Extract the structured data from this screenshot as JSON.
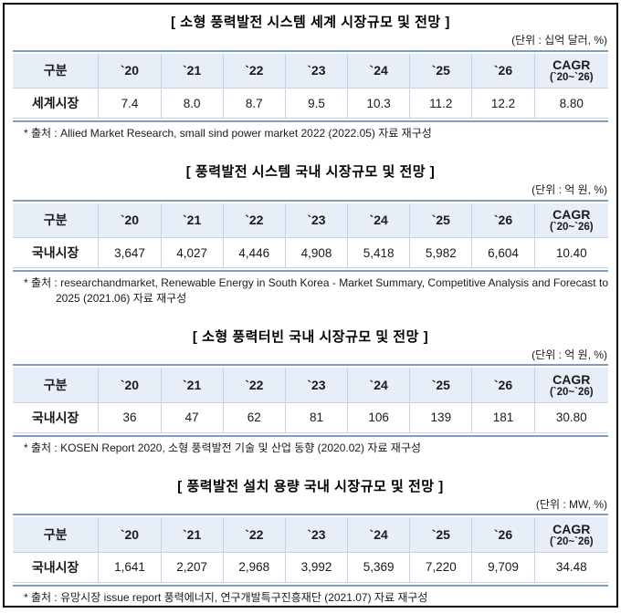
{
  "colors": {
    "header_bg": "#e8eef7",
    "heavy_border": "#7e9dc3",
    "light_border": "#c3d3e6",
    "text": "#1a1a1a",
    "page_border": "#000000"
  },
  "tables": [
    {
      "title": "[ 소형 풍력발전 시스템 세계 시장규모 및 전망 ]",
      "unit": "(단위 : 십억 달러, %)",
      "header": {
        "label": "구분",
        "years": [
          "`20",
          "`21",
          "`22",
          "`23",
          "`24",
          "`25",
          "`26"
        ],
        "cagr_line1": "CAGR",
        "cagr_line2": "(`20~`26)"
      },
      "row": {
        "label": "세계시장",
        "values": [
          "7.4",
          "8.0",
          "8.7",
          "9.5",
          "10.3",
          "11.2",
          "12.2"
        ],
        "cagr": "8.80"
      },
      "source": "* 출처 : Allied Market Research, small sind power market 2022 (2022.05) 자료 재구성"
    },
    {
      "title": "[ 풍력발전 시스템 국내 시장규모 및 전망 ]",
      "unit": "(단위 : 억 원, %)",
      "header": {
        "label": "구분",
        "years": [
          "`20",
          "`21",
          "`22",
          "`23",
          "`24",
          "`25",
          "`26"
        ],
        "cagr_line1": "CAGR",
        "cagr_line2": "(`20~`26)"
      },
      "row": {
        "label": "국내시장",
        "values": [
          "3,647",
          "4,027",
          "4,446",
          "4,908",
          "5,418",
          "5,982",
          "6,604"
        ],
        "cagr": "10.40"
      },
      "source": "* 출처 : researchandmarket, Renewable Energy in South Korea - Market Summary, Competitive Analysis and Forecast to 2025 (2021.06) 자료 재구성"
    },
    {
      "title": "[ 소형 풍력터빈 국내 시장규모 및 전망 ]",
      "unit": "(단위 : 억 원, %)",
      "header": {
        "label": "구분",
        "years": [
          "`20",
          "`21",
          "`22",
          "`23",
          "`24",
          "`25",
          "`26"
        ],
        "cagr_line1": "CAGR",
        "cagr_line2": "(`20~`26)"
      },
      "row": {
        "label": "국내시장",
        "values": [
          "36",
          "47",
          "62",
          "81",
          "106",
          "139",
          "181"
        ],
        "cagr": "30.80"
      },
      "source": "* 출처 : KOSEN Report 2020, 소형 풍력발전 기술 및 산업 동향 (2020.02) 자료 재구성"
    },
    {
      "title": "[ 풍력발전 설치 용량 국내 시장규모 및 전망 ]",
      "unit": "(단위 : MW, %)",
      "header": {
        "label": "구분",
        "years": [
          "`20",
          "`21",
          "`22",
          "`23",
          "`24",
          "`25",
          "`26"
        ],
        "cagr_line1": "CAGR",
        "cagr_line2": "(`20~`26)"
      },
      "row": {
        "label": "국내시장",
        "values": [
          "1,641",
          "2,207",
          "2,968",
          "3,992",
          "5,369",
          "7,220",
          "9,709"
        ],
        "cagr": "34.48"
      },
      "source": "* 출처 : 유망시장 issue report 풍력에너지, 연구개발특구진흥재단 (2021.07) 자료 재구성"
    }
  ]
}
